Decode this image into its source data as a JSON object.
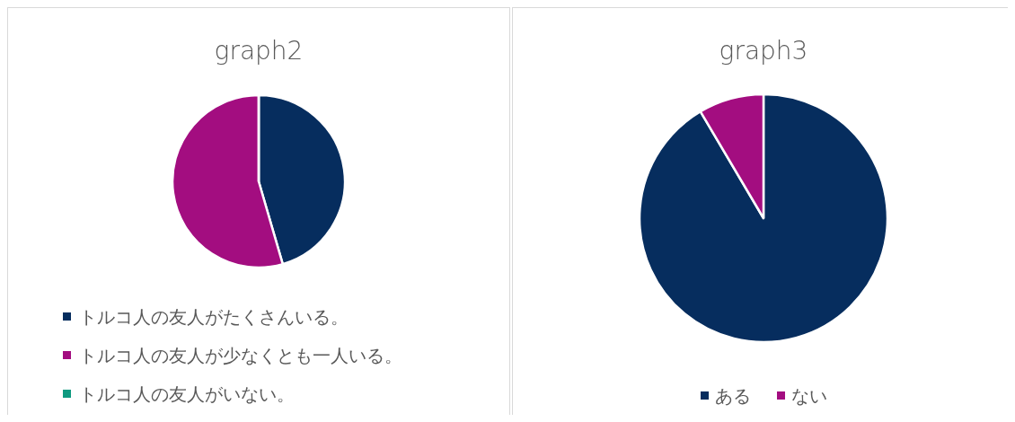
{
  "chart_data": [
    {
      "type": "pie",
      "title": "graph2",
      "categories": [
        "トルコ人の友人がたくさんいる。",
        "トルコ人の友人が少なくとも一人いる。",
        "トルコ人の友人がいない。"
      ],
      "values": [
        45.5,
        54.5,
        0
      ],
      "colors": [
        "#062d5e",
        "#a30d80",
        "#0f9a80"
      ],
      "legend": "bottom"
    },
    {
      "type": "pie",
      "title": "graph3",
      "categories": [
        "ある",
        "ない"
      ],
      "values": [
        91.5,
        8.5
      ],
      "colors": [
        "#062d5e",
        "#a30d80"
      ],
      "legend": "bottom"
    }
  ]
}
